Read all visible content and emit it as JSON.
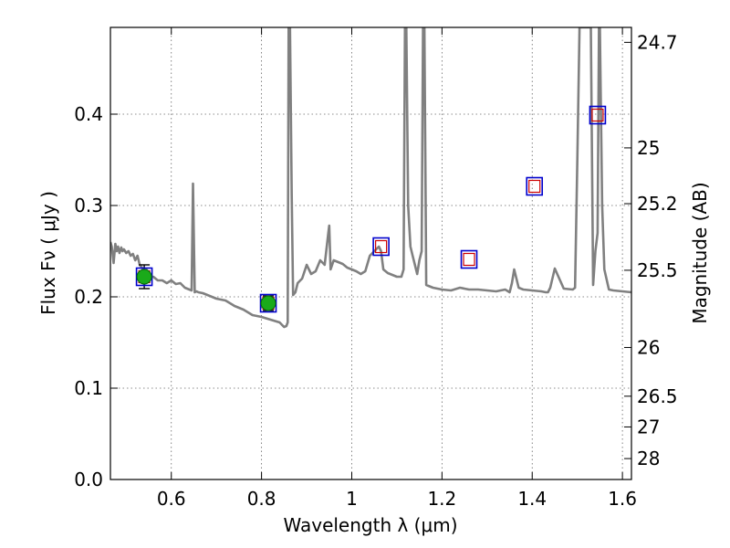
{
  "chart_data": {
    "type": "line",
    "title": "",
    "xlabel": "Wavelength  λ (μm)",
    "ylabel": "Flux  Fν  ( μJy )",
    "y2label": "Magnitude (AB)",
    "xlim": [
      0.465,
      1.62
    ],
    "ylim": [
      0.0,
      0.495
    ],
    "x_ticks": [
      0.6,
      0.8,
      1.0,
      1.2,
      1.4,
      1.6
    ],
    "x_tick_labels": [
      "0.6",
      "0.8",
      "1",
      "1.2",
      "1.4",
      "1.6"
    ],
    "y_ticks": [
      0.0,
      0.1,
      0.2,
      0.3,
      0.4
    ],
    "y_tick_labels": [
      "0.0",
      "0.1",
      "0.2",
      "0.3",
      "0.4"
    ],
    "mag_ticks": [
      "24.7",
      "25",
      "25.2",
      "25.5",
      "26",
      "26.5",
      "27",
      "28"
    ],
    "grid": true,
    "colors": {
      "spectrum": "#808080",
      "observed": "#1aaa1a",
      "model_box_outer": "#0000cc",
      "model_box_inner": "#cc0000",
      "errorbar": "#000000"
    },
    "series": [
      {
        "type": "line",
        "x": [
          0.465,
          0.468,
          0.472,
          0.476,
          0.479,
          0.482,
          0.485,
          0.489,
          0.492,
          0.495,
          0.5,
          0.505,
          0.51,
          0.515,
          0.52,
          0.525,
          0.53,
          0.535,
          0.54,
          0.545,
          0.55,
          0.56,
          0.57,
          0.58,
          0.59,
          0.6,
          0.61,
          0.62,
          0.63,
          0.64,
          0.645,
          0.648,
          0.652,
          0.656,
          0.66,
          0.67,
          0.68,
          0.7,
          0.72,
          0.74,
          0.76,
          0.78,
          0.8,
          0.82,
          0.84,
          0.85,
          0.855,
          0.858,
          0.86,
          0.863,
          0.867,
          0.87,
          0.875,
          0.88,
          0.89,
          0.9,
          0.91,
          0.92,
          0.93,
          0.94,
          0.948,
          0.95,
          0.953,
          0.96,
          0.97,
          0.98,
          0.99,
          1.0,
          1.01,
          1.02,
          1.03,
          1.04,
          1.05,
          1.06,
          1.065,
          1.07,
          1.08,
          1.09,
          1.1,
          1.11,
          1.115,
          1.118,
          1.121,
          1.125,
          1.13,
          1.135,
          1.14,
          1.145,
          1.15,
          1.155,
          1.158,
          1.161,
          1.165,
          1.17,
          1.18,
          1.2,
          1.22,
          1.24,
          1.26,
          1.28,
          1.3,
          1.32,
          1.34,
          1.35,
          1.355,
          1.36,
          1.37,
          1.38,
          1.4,
          1.42,
          1.43,
          1.435,
          1.44,
          1.45,
          1.47,
          1.49,
          1.495,
          1.5,
          1.505,
          1.51,
          1.52,
          1.53,
          1.535,
          1.54,
          1.545,
          1.548,
          1.55,
          1.555,
          1.56,
          1.57,
          1.58,
          1.6,
          1.62
        ],
        "y": [
          0.26,
          0.255,
          0.237,
          0.258,
          0.25,
          0.255,
          0.248,
          0.254,
          0.25,
          0.252,
          0.248,
          0.25,
          0.245,
          0.247,
          0.24,
          0.245,
          0.235,
          0.232,
          0.225,
          0.23,
          0.222,
          0.222,
          0.218,
          0.218,
          0.215,
          0.218,
          0.214,
          0.215,
          0.21,
          0.208,
          0.207,
          0.324,
          0.205,
          0.206,
          0.205,
          0.204,
          0.202,
          0.198,
          0.196,
          0.19,
          0.186,
          0.18,
          0.178,
          0.175,
          0.172,
          0.167,
          0.168,
          0.172,
          0.495,
          0.495,
          0.31,
          0.202,
          0.205,
          0.215,
          0.22,
          0.235,
          0.225,
          0.228,
          0.24,
          0.235,
          0.27,
          0.278,
          0.23,
          0.24,
          0.238,
          0.236,
          0.232,
          0.23,
          0.228,
          0.225,
          0.228,
          0.245,
          0.25,
          0.255,
          0.25,
          0.23,
          0.226,
          0.224,
          0.222,
          0.222,
          0.23,
          0.495,
          0.495,
          0.3,
          0.255,
          0.245,
          0.235,
          0.225,
          0.24,
          0.25,
          0.495,
          0.495,
          0.213,
          0.212,
          0.21,
          0.208,
          0.207,
          0.21,
          0.208,
          0.208,
          0.207,
          0.206,
          0.208,
          0.205,
          0.215,
          0.23,
          0.21,
          0.208,
          0.207,
          0.206,
          0.205,
          0.205,
          0.21,
          0.231,
          0.209,
          0.208,
          0.21,
          0.35,
          0.495,
          0.495,
          0.495,
          0.495,
          0.213,
          0.25,
          0.27,
          0.495,
          0.495,
          0.3,
          0.23,
          0.208,
          0.207,
          0.206,
          0.205
        ]
      },
      {
        "type": "scatter",
        "x": [
          0.54,
          0.815
        ],
        "y": [
          0.222,
          0.193
        ],
        "yerr": [
          0.013,
          0.008
        ]
      },
      {
        "type": "box-markers",
        "x": [
          0.54,
          0.815,
          1.065,
          1.26,
          1.405,
          1.545
        ],
        "y": [
          0.222,
          0.193,
          0.255,
          0.241,
          0.321,
          0.399
        ]
      }
    ]
  }
}
